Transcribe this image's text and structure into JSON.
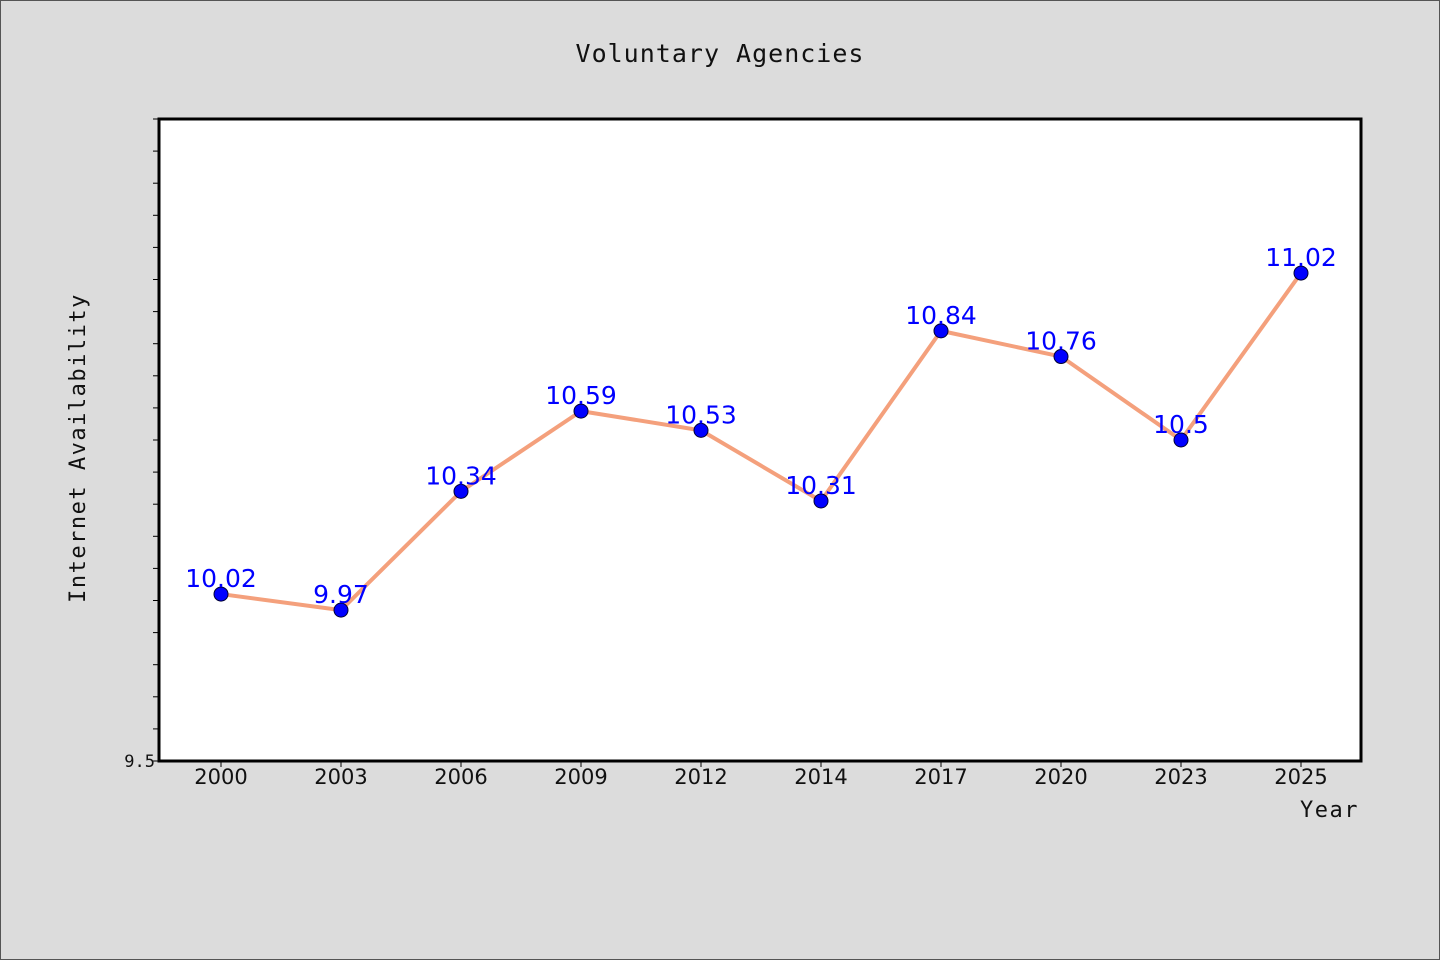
{
  "chart_data": {
    "type": "line",
    "title": "Voluntary Agencies",
    "xlabel": "Year",
    "ylabel": "Internet Availability",
    "categories": [
      "2000",
      "2003",
      "2006",
      "2009",
      "2012",
      "2014",
      "2017",
      "2020",
      "2023",
      "2025"
    ],
    "series": [
      {
        "values": [
          10.02,
          9.97,
          10.34,
          10.59,
          10.53,
          10.31,
          10.84,
          10.76,
          10.5,
          11.02
        ]
      }
    ],
    "data_labels": [
      "10.02",
      "9.97",
      "10.34",
      "10.59",
      "10.53",
      "10.31",
      "10.84",
      "10.76",
      "10.5",
      "11.02"
    ],
    "ylim": [
      9.5,
      11.5
    ],
    "y_tick_labels": [
      "9.5"
    ],
    "y_minor_tick_step": 0.1,
    "grid": false,
    "legend": "none",
    "colors": {
      "line": "#f4a07c",
      "marker": "#0000ff",
      "marker_edge": "#000033",
      "data_label": "#0000ff",
      "plot_background": "#ffffff",
      "page_background": "#dcdcdc"
    }
  }
}
